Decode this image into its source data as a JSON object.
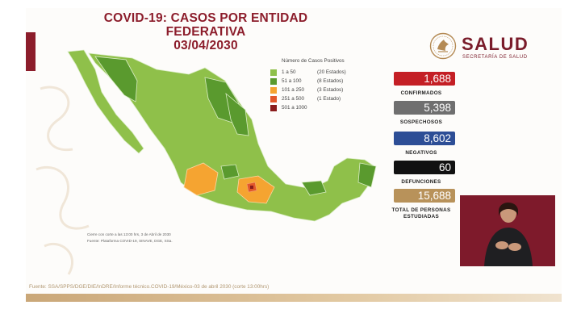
{
  "title": "COVID-19: CASOS POR ENTIDAD FEDERATIVA",
  "date": "03/04/2030",
  "logo": {
    "brand": "SALUD",
    "subtitle": "SECRETARÍA DE SALUD"
  },
  "legend": {
    "title": "Número de Casos Positivos",
    "items": [
      {
        "range": "1 a 50",
        "count": "(20 Estados)",
        "color": "#8fc04a"
      },
      {
        "range": "51 a 100",
        "count": "(8 Estados)",
        "color": "#5a9a2e"
      },
      {
        "range": "101 a 250",
        "count": "(3 Estados)",
        "color": "#f5a431"
      },
      {
        "range": "251 a 500",
        "count": "(1 Estado)",
        "color": "#e2572a"
      },
      {
        "range": "501 a 1000",
        "count": "",
        "color": "#8a1c1c"
      }
    ]
  },
  "stats": [
    {
      "value": "1,688",
      "label": "CONFIRMADOS",
      "color": "#c41f25"
    },
    {
      "value": "5,398",
      "label": "SOSPECHOSOS",
      "color": "#6f6f6f"
    },
    {
      "value": "8,602",
      "label": "NEGATIVOS",
      "color": "#2d4e96"
    },
    {
      "value": "60",
      "label": "DEFUNCIONES",
      "color": "#111111"
    },
    {
      "value": "15,688",
      "label": "TOTAL DE PERSONAS ESTUDIADAS",
      "color": "#b8925a"
    }
  ],
  "notes": {
    "line1": "Cierre con corte a las 13:00 hrs, 3 de Abril de 2030",
    "line2": "Fuente: Plataforma COVID-19, SINAVE, DGE, SSa."
  },
  "source": "Fuente: SSA/SPPS/DGE/DIE/InDRE/Informe técnico.COVID-19/México-03 de abril 2030 (corte 13:00hrs)",
  "colors": {
    "accent": "#8c1d2b",
    "map_base": "#8fc04a",
    "map_dark": "#5a9a2e"
  }
}
